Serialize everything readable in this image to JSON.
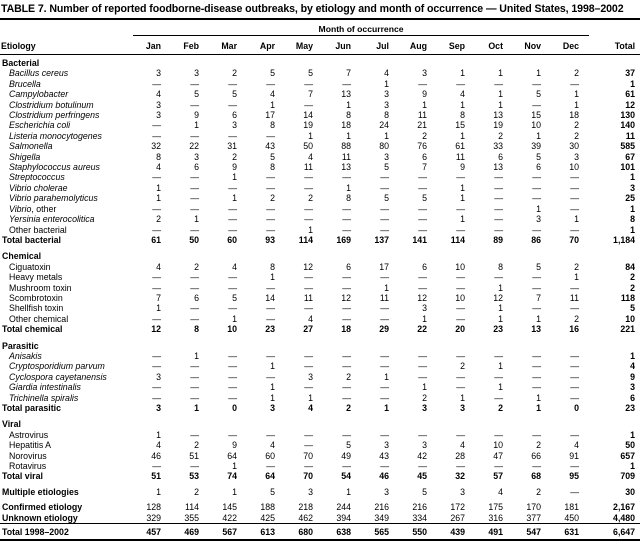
{
  "title": "TABLE 7. Number of reported foodborne-disease outbreaks, by etiology and month of occurrence — United States, 1998–2002",
  "colors": {
    "text": "#000000",
    "background": "#ffffff",
    "rule": "#000000"
  },
  "header": {
    "etiology_label": "Etiology",
    "group_label": "Month of occurrence",
    "months": [
      "Jan",
      "Feb",
      "Mar",
      "Apr",
      "May",
      "Jun",
      "Jul",
      "Aug",
      "Sep",
      "Oct",
      "Nov",
      "Dec"
    ],
    "total_label": "Total"
  },
  "sections": [
    {
      "name": "Bacterial",
      "rows": [
        {
          "label": "Bacillus cereus",
          "italic": true,
          "values": [
            "3",
            "3",
            "2",
            "5",
            "5",
            "7",
            "4",
            "3",
            "1",
            "1",
            "1",
            "2"
          ],
          "total": "37"
        },
        {
          "label": "Brucella",
          "italic": true,
          "values": [
            "—",
            "—",
            "—",
            "—",
            "—",
            "—",
            "1",
            "—",
            "—",
            "—",
            "—",
            "—"
          ],
          "total": "1"
        },
        {
          "label": "Campylobacter",
          "italic": true,
          "values": [
            "4",
            "5",
            "5",
            "4",
            "7",
            "13",
            "3",
            "9",
            "4",
            "1",
            "5",
            "1"
          ],
          "total": "61"
        },
        {
          "label": "Clostridium botulinum",
          "italic": true,
          "values": [
            "3",
            "—",
            "—",
            "1",
            "—",
            "1",
            "3",
            "1",
            "1",
            "1",
            "—",
            "1"
          ],
          "total": "12"
        },
        {
          "label": "Clostridium perfringens",
          "italic": true,
          "values": [
            "3",
            "9",
            "6",
            "17",
            "14",
            "8",
            "8",
            "11",
            "8",
            "13",
            "15",
            "18"
          ],
          "total": "130"
        },
        {
          "label": "Escherichia coli",
          "italic": true,
          "values": [
            "—",
            "1",
            "3",
            "8",
            "19",
            "18",
            "24",
            "21",
            "15",
            "19",
            "10",
            "2"
          ],
          "total": "140"
        },
        {
          "label": "Listeria monocytogenes",
          "italic": true,
          "values": [
            "—",
            "—",
            "—",
            "—",
            "1",
            "1",
            "1",
            "2",
            "1",
            "2",
            "1",
            "2"
          ],
          "total": "11"
        },
        {
          "label": "Salmonella",
          "italic": true,
          "values": [
            "32",
            "22",
            "31",
            "43",
            "50",
            "88",
            "80",
            "76",
            "61",
            "33",
            "39",
            "30"
          ],
          "total": "585"
        },
        {
          "label": "Shigella",
          "italic": true,
          "values": [
            "8",
            "3",
            "2",
            "5",
            "4",
            "11",
            "3",
            "6",
            "11",
            "6",
            "5",
            "3"
          ],
          "total": "67"
        },
        {
          "label": "Staphylococcus aureus",
          "italic": true,
          "values": [
            "4",
            "6",
            "9",
            "8",
            "11",
            "13",
            "5",
            "7",
            "9",
            "13",
            "6",
            "10"
          ],
          "total": "101"
        },
        {
          "label": "Streptococcus",
          "italic": true,
          "values": [
            "—",
            "—",
            "1",
            "—",
            "—",
            "—",
            "—",
            "—",
            "—",
            "—",
            "—",
            "—"
          ],
          "total": "1"
        },
        {
          "label": "Vibrio cholerae",
          "italic": true,
          "values": [
            "1",
            "—",
            "—",
            "—",
            "—",
            "1",
            "—",
            "—",
            "1",
            "—",
            "—",
            "—"
          ],
          "total": "3"
        },
        {
          "label": "Vibrio parahemolyticus",
          "italic": true,
          "values": [
            "1",
            "—",
            "1",
            "2",
            "2",
            "8",
            "5",
            "5",
            "1",
            "—",
            "—",
            "—"
          ],
          "total": "25"
        },
        {
          "label": "Vibrio",
          "label_suffix": ", other",
          "italic": true,
          "values": [
            "—",
            "—",
            "—",
            "—",
            "—",
            "—",
            "—",
            "—",
            "—",
            "—",
            "1",
            "—"
          ],
          "total": "1"
        },
        {
          "label": "Yersinia enterocolitica",
          "italic": true,
          "values": [
            "2",
            "1",
            "—",
            "—",
            "—",
            "—",
            "—",
            "—",
            "1",
            "—",
            "3",
            "1"
          ],
          "total": "8"
        },
        {
          "label": "Other bacterial",
          "italic": false,
          "values": [
            "—",
            "—",
            "—",
            "—",
            "1",
            "—",
            "—",
            "—",
            "—",
            "—",
            "—",
            "—"
          ],
          "total": "1"
        }
      ],
      "total_row": {
        "label": "Total bacterial",
        "italic": false,
        "values": [
          "61",
          "50",
          "60",
          "93",
          "114",
          "169",
          "137",
          "141",
          "114",
          "89",
          "86",
          "70"
        ],
        "total": "1,184"
      }
    },
    {
      "name": "Chemical",
      "rows": [
        {
          "label": "Ciguatoxin",
          "italic": false,
          "values": [
            "4",
            "2",
            "4",
            "8",
            "12",
            "6",
            "17",
            "6",
            "10",
            "8",
            "5",
            "2"
          ],
          "total": "84"
        },
        {
          "label": "Heavy metals",
          "italic": false,
          "values": [
            "—",
            "—",
            "—",
            "1",
            "—",
            "—",
            "—",
            "—",
            "—",
            "—",
            "—",
            "1"
          ],
          "total": "2"
        },
        {
          "label": "Mushroom toxin",
          "italic": false,
          "values": [
            "—",
            "—",
            "—",
            "—",
            "—",
            "—",
            "1",
            "—",
            "—",
            "1",
            "—",
            "—"
          ],
          "total": "2"
        },
        {
          "label": "Scombrotoxin",
          "italic": false,
          "values": [
            "7",
            "6",
            "5",
            "14",
            "11",
            "12",
            "11",
            "12",
            "10",
            "12",
            "7",
            "11"
          ],
          "total": "118"
        },
        {
          "label": "Shellfish toxin",
          "italic": false,
          "values": [
            "1",
            "—",
            "—",
            "—",
            "—",
            "—",
            "—",
            "3",
            "—",
            "1",
            "—",
            "—"
          ],
          "total": "5"
        },
        {
          "label": "Other chemical",
          "italic": false,
          "values": [
            "—",
            "—",
            "1",
            "—",
            "4",
            "—",
            "—",
            "1",
            "—",
            "1",
            "1",
            "2"
          ],
          "total": "10"
        }
      ],
      "total_row": {
        "label": "Total chemical",
        "italic": false,
        "values": [
          "12",
          "8",
          "10",
          "23",
          "27",
          "18",
          "29",
          "22",
          "20",
          "23",
          "13",
          "16"
        ],
        "total": "221"
      }
    },
    {
      "name": "Parasitic",
      "rows": [
        {
          "label": "Anisakis",
          "italic": true,
          "values": [
            "—",
            "1",
            "—",
            "—",
            "—",
            "—",
            "—",
            "—",
            "—",
            "—",
            "—",
            "—"
          ],
          "total": "1"
        },
        {
          "label": "Cryptosporidium parvum",
          "italic": true,
          "values": [
            "—",
            "—",
            "—",
            "1",
            "—",
            "—",
            "—",
            "—",
            "2",
            "1",
            "—",
            "—"
          ],
          "total": "4"
        },
        {
          "label": "Cyclospora cayetanensis",
          "italic": true,
          "values": [
            "3",
            "—",
            "—",
            "—",
            "3",
            "2",
            "1",
            "—",
            "—",
            "—",
            "—",
            "—"
          ],
          "total": "9"
        },
        {
          "label": "Giardia intestinalis",
          "italic": true,
          "values": [
            "—",
            "—",
            "—",
            "1",
            "—",
            "—",
            "—",
            "1",
            "—",
            "1",
            "—",
            "—"
          ],
          "total": "3"
        },
        {
          "label": "Trichinella spiralis",
          "italic": true,
          "values": [
            "—",
            "—",
            "—",
            "1",
            "1",
            "—",
            "—",
            "2",
            "1",
            "—",
            "1",
            "—"
          ],
          "total": "6"
        }
      ],
      "total_row": {
        "label": "Total parasitic",
        "italic": false,
        "values": [
          "3",
          "1",
          "0",
          "3",
          "4",
          "2",
          "1",
          "3",
          "3",
          "2",
          "1",
          "0"
        ],
        "total": "23"
      }
    },
    {
      "name": "Viral",
      "rows": [
        {
          "label": "Astrovirus",
          "italic": false,
          "values": [
            "1",
            "—",
            "—",
            "—",
            "—",
            "—",
            "—",
            "—",
            "—",
            "—",
            "—",
            "—"
          ],
          "total": "1"
        },
        {
          "label": "Hepatitis A",
          "italic": false,
          "values": [
            "4",
            "2",
            "9",
            "4",
            "—",
            "5",
            "3",
            "3",
            "4",
            "10",
            "2",
            "4"
          ],
          "total": "50"
        },
        {
          "label": "Norovirus",
          "italic": false,
          "values": [
            "46",
            "51",
            "64",
            "60",
            "70",
            "49",
            "43",
            "42",
            "28",
            "47",
            "66",
            "91"
          ],
          "total": "657"
        },
        {
          "label": "Rotavirus",
          "italic": false,
          "values": [
            "—",
            "—",
            "1",
            "—",
            "—",
            "—",
            "—",
            "—",
            "—",
            "—",
            "—",
            "—"
          ],
          "total": "1"
        }
      ],
      "total_row": {
        "label": "Total viral",
        "italic": false,
        "values": [
          "51",
          "53",
          "74",
          "64",
          "70",
          "54",
          "46",
          "45",
          "32",
          "57",
          "68",
          "95"
        ],
        "total": "709"
      }
    }
  ],
  "summary_rows": [
    {
      "label": "Multiple etiologies",
      "italic": false,
      "gap_before": true,
      "values": [
        "1",
        "2",
        "1",
        "5",
        "3",
        "1",
        "3",
        "5",
        "3",
        "4",
        "2",
        "—"
      ],
      "total": "30"
    },
    {
      "label": "Confirmed etiology",
      "italic": false,
      "gap_before": true,
      "values": [
        "128",
        "114",
        "145",
        "188",
        "218",
        "244",
        "216",
        "216",
        "172",
        "175",
        "170",
        "181"
      ],
      "total": "2,167"
    },
    {
      "label": "Unknown etiology",
      "italic": false,
      "gap_before": false,
      "values": [
        "329",
        "355",
        "422",
        "425",
        "462",
        "394",
        "349",
        "334",
        "267",
        "316",
        "377",
        "450"
      ],
      "total": "4,480"
    }
  ],
  "grand_total_row": {
    "label": "Total 1998–2002",
    "italic": false,
    "values": [
      "457",
      "469",
      "567",
      "613",
      "680",
      "638",
      "565",
      "550",
      "439",
      "491",
      "547",
      "631"
    ],
    "total": "6,647"
  }
}
